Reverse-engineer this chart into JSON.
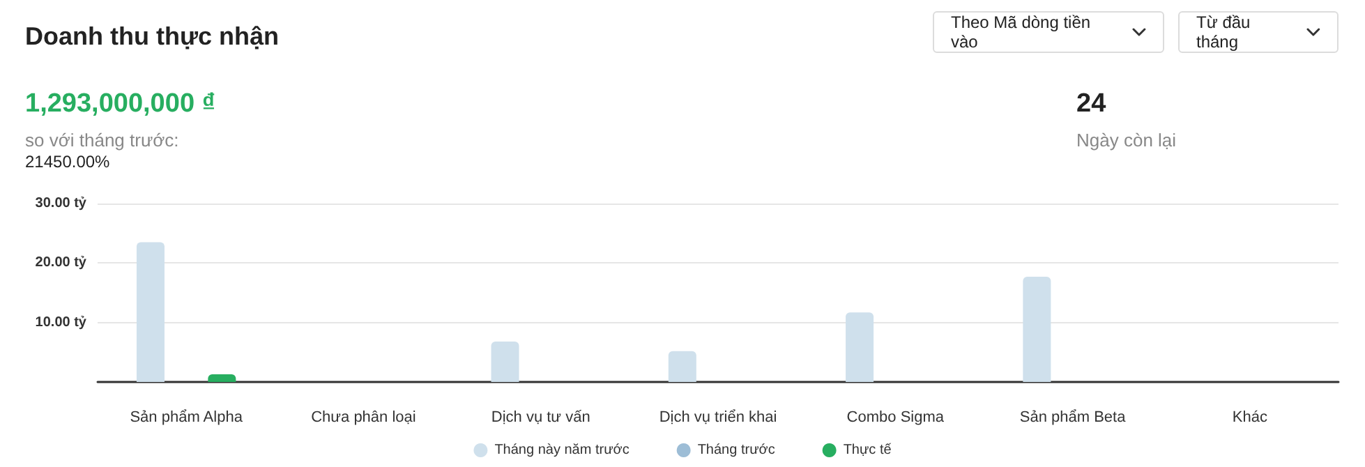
{
  "chart_data": {
    "type": "bar",
    "title": "Doanh thu thực nhận",
    "annotations": [
      "Theo Mã dòng tiền vào",
      "Từ đầu tháng",
      "1,293,000,000 ₫",
      "so với tháng trước:",
      "21450.00%",
      "24",
      "Ngày còn lại"
    ],
    "categories": [
      "Sản phẩm Alpha",
      "Chưa phân loại",
      "Dịch vụ tư vấn",
      "Dịch vụ triển khai",
      "Combo Sigma",
      "Sản phẩm Beta",
      "Khác"
    ],
    "series": [
      {
        "name": "Tháng này năm trước",
        "color": "#cfe0ec",
        "values": [
          23.5,
          0,
          6.8,
          5.2,
          11.7,
          17.7,
          0
        ]
      },
      {
        "name": "Tháng trước",
        "color": "#9dbdd6",
        "values": [
          0,
          0,
          0,
          0,
          0,
          0,
          0
        ]
      },
      {
        "name": "Thực tế",
        "color": "#27ae60",
        "values": [
          1.3,
          0,
          0,
          0,
          0,
          0,
          0
        ]
      }
    ],
    "ylim": [
      0,
      30
    ],
    "yticks": [
      {
        "value": 0,
        "label": null
      },
      {
        "value": 10,
        "label": "10.00 tỷ"
      },
      {
        "value": 20,
        "label": "20.00 tỷ"
      },
      {
        "value": 30,
        "label": "30.00 tỷ"
      }
    ],
    "grid": "y",
    "legend": "bottom"
  }
}
